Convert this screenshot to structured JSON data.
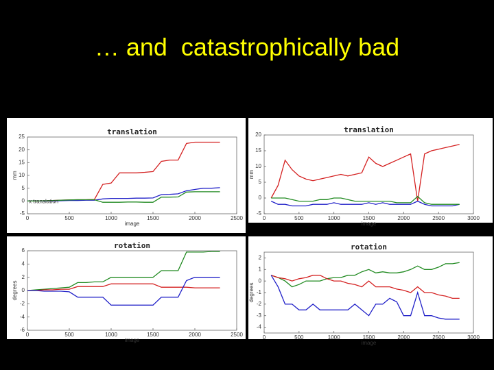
{
  "title": "… and  catastrophically bad",
  "chart_data": [
    {
      "type": "line",
      "title": "translation",
      "x_label": "image",
      "y_label": "mm",
      "annotation": "x translation",
      "x": [
        0,
        100,
        200,
        300,
        400,
        500,
        600,
        700,
        800,
        900,
        1000,
        1100,
        1200,
        1300,
        1400,
        1500,
        1600,
        1700,
        1800,
        1900,
        2000,
        2100,
        2200,
        2300
      ],
      "series": [
        {
          "color": "#d42020",
          "values": [
            0,
            0,
            0,
            0.2,
            0.3,
            0.4,
            0.5,
            0.5,
            0.6,
            6.5,
            7,
            11,
            11,
            11,
            11.2,
            11.5,
            15.5,
            16,
            16,
            22.5,
            23,
            23,
            23,
            23
          ]
        },
        {
          "color": "#2020c8",
          "values": [
            0,
            0,
            0,
            0,
            0.1,
            0.2,
            0.2,
            0.3,
            0.3,
            0.8,
            1,
            1,
            1,
            1.1,
            1.1,
            1.2,
            2.5,
            2.6,
            2.8,
            4,
            4.5,
            5,
            5,
            5.2
          ]
        },
        {
          "color": "#208a20",
          "values": [
            0,
            0,
            0.1,
            0.2,
            0.3,
            0.4,
            0.5,
            0.5,
            0.5,
            -0.5,
            -0.5,
            -0.5,
            -0.4,
            -0.4,
            -0.5,
            -0.5,
            1.5,
            1.5,
            1.6,
            3.5,
            3.6,
            3.6,
            3.6,
            3.6
          ]
        }
      ],
      "xlim": [
        0,
        2500
      ],
      "xticks": [
        0,
        500,
        1000,
        1500,
        2000,
        2500
      ],
      "ylim": [
        -5,
        25
      ],
      "yticks": [
        -5,
        0,
        5,
        10,
        15,
        20,
        25
      ]
    },
    {
      "type": "line",
      "title": "translation",
      "x_label": "image",
      "y_label": "mm",
      "x": [
        100,
        200,
        300,
        400,
        500,
        600,
        700,
        800,
        900,
        1000,
        1100,
        1200,
        1300,
        1400,
        1500,
        1600,
        1700,
        1800,
        1900,
        2000,
        2100,
        2200,
        2300,
        2400,
        2500,
        2600,
        2700,
        2800
      ],
      "series": [
        {
          "color": "#d42020",
          "values": [
            0,
            4,
            12,
            9,
            7,
            6,
            5.5,
            6,
            6.5,
            7,
            7.5,
            7,
            7.5,
            8,
            13,
            11,
            10,
            11,
            12,
            13,
            14,
            -1,
            14,
            15,
            15.5,
            16,
            16.5,
            17
          ]
        },
        {
          "color": "#2020c8",
          "values": [
            -1,
            -2,
            -2,
            -2.5,
            -2.5,
            -2.5,
            -2,
            -2,
            -2,
            -1.5,
            -2,
            -2,
            -2,
            -2,
            -1.5,
            -2,
            -1.5,
            -2,
            -2,
            -2,
            -2,
            -1,
            -2,
            -2.5,
            -2.5,
            -2.5,
            -2.5,
            -2
          ]
        },
        {
          "color": "#208a20",
          "values": [
            0,
            0,
            0,
            -0.5,
            -1,
            -1,
            -1,
            -0.5,
            -0.5,
            0,
            0,
            -0.5,
            -1,
            -1,
            -1,
            -1,
            -1,
            -1,
            -1.5,
            -1.5,
            -1.5,
            0.5,
            -1.5,
            -2,
            -2,
            -2,
            -2,
            -2
          ]
        }
      ],
      "xlim": [
        0,
        3000
      ],
      "xticks": [
        0,
        500,
        1000,
        1500,
        2000,
        2500,
        3000
      ],
      "ylim": [
        -5,
        20
      ],
      "yticks": [
        -5,
        0,
        5,
        10,
        15,
        20
      ]
    },
    {
      "type": "line",
      "title": "rotation",
      "x_label": "image",
      "y_label": "degrees",
      "x": [
        0,
        100,
        200,
        300,
        400,
        500,
        600,
        700,
        800,
        900,
        1000,
        1100,
        1200,
        1300,
        1400,
        1500,
        1600,
        1700,
        1800,
        1900,
        2000,
        2100,
        2200,
        2300
      ],
      "series": [
        {
          "color": "#208a20",
          "values": [
            0,
            0.1,
            0.2,
            0.3,
            0.4,
            0.5,
            1.2,
            1.2,
            1.3,
            1.3,
            2,
            2,
            2,
            2,
            2,
            2,
            3,
            3,
            3,
            5.8,
            5.8,
            5.8,
            5.9,
            5.9
          ]
        },
        {
          "color": "#d42020",
          "values": [
            0,
            0,
            0.1,
            0.1,
            0.2,
            0.2,
            0.6,
            0.6,
            0.6,
            0.6,
            1,
            1,
            1,
            1,
            1,
            1,
            0.5,
            0.5,
            0.5,
            0.5,
            0.4,
            0.4,
            0.4,
            0.4
          ]
        },
        {
          "color": "#2020c8",
          "values": [
            0,
            0,
            -0.1,
            -0.1,
            -0.1,
            -0.2,
            -1,
            -1,
            -1,
            -1,
            -2.2,
            -2.2,
            -2.2,
            -2.2,
            -2.2,
            -2.2,
            -1,
            -1,
            -1,
            1.5,
            2,
            2,
            2,
            2
          ]
        }
      ],
      "xlim": [
        0,
        2500
      ],
      "xticks": [
        0,
        500,
        1000,
        1500,
        2000,
        2500
      ],
      "ylim": [
        -6,
        6
      ],
      "yticks": [
        -6,
        -4,
        -2,
        0,
        2,
        4,
        6
      ]
    },
    {
      "type": "line",
      "title": "rotation",
      "x_label": "image",
      "y_label": "degrees",
      "x": [
        100,
        200,
        300,
        400,
        500,
        600,
        700,
        800,
        900,
        1000,
        1100,
        1200,
        1300,
        1400,
        1500,
        1600,
        1700,
        1800,
        1900,
        2000,
        2100,
        2200,
        2300,
        2400,
        2500,
        2600,
        2700,
        2800
      ],
      "series": [
        {
          "color": "#208a20",
          "values": [
            0.5,
            0.3,
            0,
            -0.5,
            -0.3,
            0,
            0,
            0,
            0.2,
            0.3,
            0.3,
            0.5,
            0.5,
            0.8,
            1,
            0.7,
            0.8,
            0.7,
            0.7,
            0.8,
            1,
            1.3,
            1,
            1,
            1.2,
            1.5,
            1.5,
            1.6
          ]
        },
        {
          "color": "#d42020",
          "values": [
            0.5,
            0.3,
            0.2,
            0,
            0.2,
            0.3,
            0.5,
            0.5,
            0.2,
            0,
            0,
            -0.2,
            -0.3,
            -0.5,
            0,
            -0.5,
            -0.5,
            -0.5,
            -0.7,
            -0.8,
            -1,
            -0.5,
            -1,
            -1,
            -1.2,
            -1.3,
            -1.5,
            -1.5
          ]
        },
        {
          "color": "#2020c8",
          "values": [
            0.5,
            -0.5,
            -2,
            -2,
            -2.5,
            -2.5,
            -2,
            -2.5,
            -2.5,
            -2.5,
            -2.5,
            -2.5,
            -2,
            -2.5,
            -3,
            -2,
            -2,
            -1.5,
            -1.8,
            -3,
            -3,
            -1,
            -3,
            -3,
            -3.2,
            -3.3,
            -3.3,
            -3.3
          ]
        }
      ],
      "xlim": [
        0,
        3000
      ],
      "xticks": [
        0,
        500,
        1000,
        1500,
        2000,
        2500,
        3000
      ],
      "ylim": [
        -4.5,
        2.5
      ],
      "yticks": [
        -4,
        -3,
        -2,
        -1,
        0,
        1,
        2
      ]
    }
  ]
}
